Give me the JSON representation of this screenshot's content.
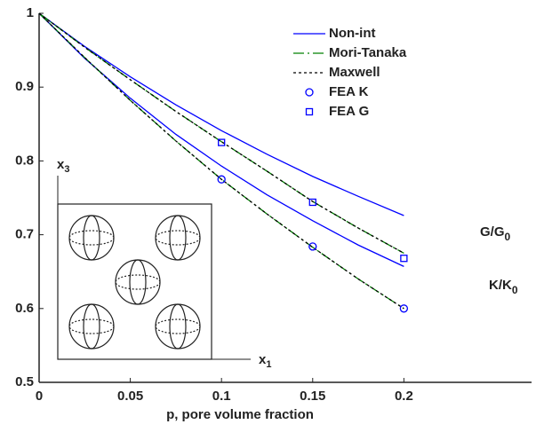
{
  "chart_data": {
    "type": "line",
    "x_label": "p, pore volume fraction",
    "xlim": [
      0,
      0.27
    ],
    "ylim": [
      0.5,
      1
    ],
    "xticks": [
      0,
      0.05,
      0.1,
      0.15,
      0.2
    ],
    "yticks": [
      0.5,
      0.6,
      0.7,
      0.8,
      0.9,
      1
    ],
    "x": [
      0,
      0.025,
      0.05,
      0.075,
      0.1,
      0.125,
      0.15,
      0.175,
      0.2
    ],
    "series": [
      {
        "name": "Non-int",
        "color": "#0000ff",
        "style": "solid",
        "lines": [
          {
            "values": [
              1,
              0.955,
              0.914,
              0.876,
              0.841,
              0.809,
              0.779,
              0.752,
              0.726
            ]
          },
          {
            "values": [
              1,
              0.939,
              0.885,
              0.836,
              0.793,
              0.754,
              0.719,
              0.686,
              0.657
            ]
          }
        ]
      },
      {
        "name": "Mori-Tanaka",
        "color": "#008000",
        "style": "dashdot",
        "lines": [
          {
            "values": [
              1,
              0.954,
              0.91,
              0.867,
              0.826,
              0.786,
              0.745,
              0.709,
              0.675
            ]
          },
          {
            "values": [
              1,
              0.94,
              0.882,
              0.827,
              0.775,
              0.728,
              0.683,
              0.64,
              0.6
            ]
          }
        ]
      },
      {
        "name": "Maxwell",
        "color": "#000000",
        "style": "dotted",
        "lines": [
          {
            "values": [
              1,
              0.954,
              0.91,
              0.867,
              0.826,
              0.786,
              0.745,
              0.709,
              0.675
            ]
          },
          {
            "values": [
              1,
              0.94,
              0.882,
              0.827,
              0.775,
              0.728,
              0.683,
              0.64,
              0.6
            ]
          }
        ]
      },
      {
        "name": "FEA K",
        "color": "#0000ff",
        "marker": "circle",
        "x": [
          0.1,
          0.15,
          0.2
        ],
        "values": [
          0.775,
          0.684,
          0.6
        ]
      },
      {
        "name": "FEA G",
        "color": "#0000ff",
        "marker": "square",
        "x": [
          0.1,
          0.15,
          0.2
        ],
        "values": [
          0.825,
          0.744,
          0.668
        ]
      }
    ],
    "annotations": [
      {
        "text": "G/G",
        "sub": "0"
      },
      {
        "text": "K/K",
        "sub": "0"
      }
    ],
    "inset_labels": [
      {
        "text": "x",
        "sub": "3"
      },
      {
        "text": "x",
        "sub": "1"
      }
    ]
  }
}
